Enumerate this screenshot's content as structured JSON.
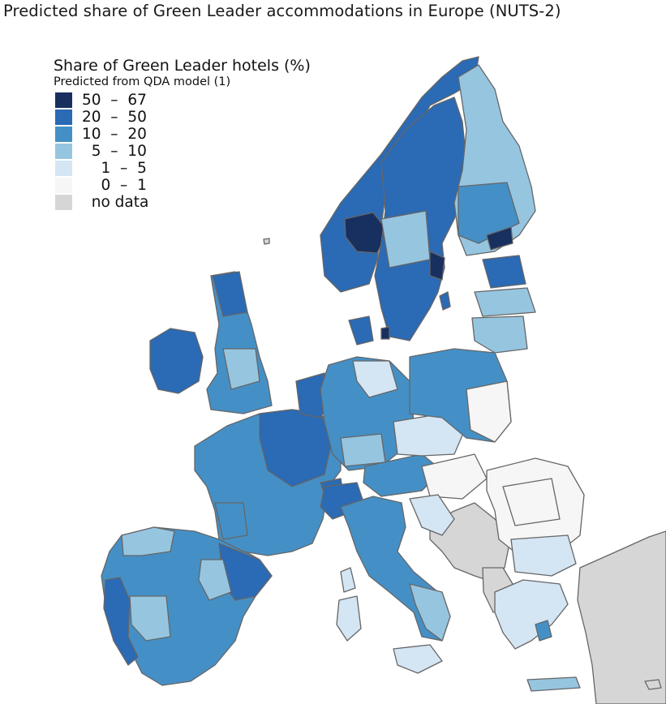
{
  "title": "Predicted share of Green Leader accommodations in Europe (NUTS-2)",
  "legend": {
    "title": "Share of Green Leader hotels (%)",
    "subtitle": "Predicted from QDA model (1)",
    "items": [
      {
        "label": "50  –  67",
        "color": "#17305f"
      },
      {
        "label": "20  –  50",
        "color": "#2b6ab4"
      },
      {
        "label": "10  –  20",
        "color": "#4490c6"
      },
      {
        "label": "  5  –  10",
        "color": "#96c5e0"
      },
      {
        "label": "    1  –  5",
        "color": "#d4e5f4"
      },
      {
        "label": "    0  –  1",
        "color": "#f6f6f6"
      },
      {
        "label": "  no data",
        "color": "#d6d6d6"
      }
    ]
  }
}
